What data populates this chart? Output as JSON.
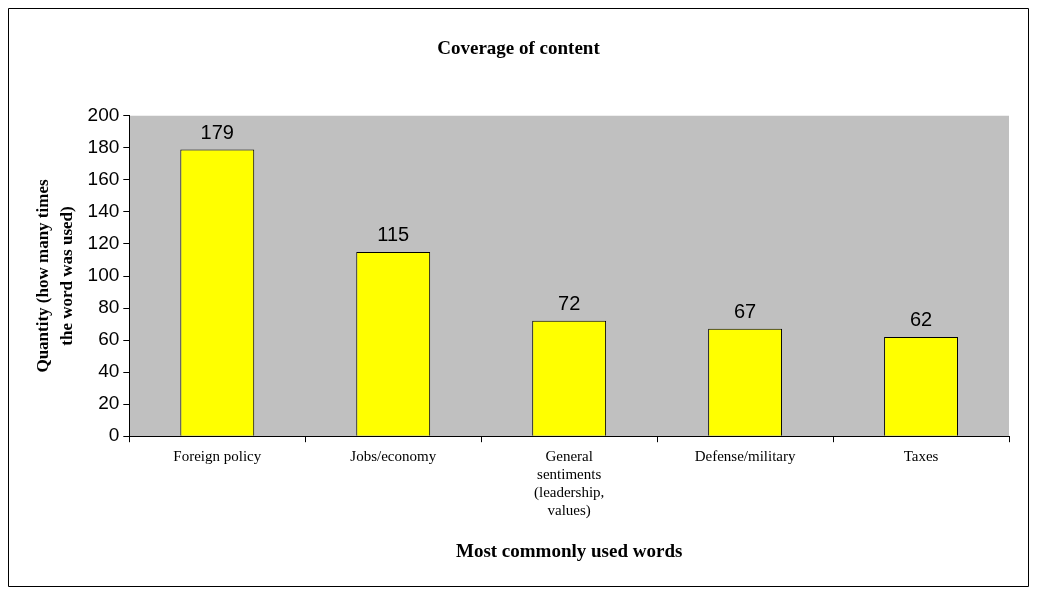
{
  "chart_data": {
    "type": "bar",
    "title": "Coverage of content",
    "xlabel": "Most commonly used words",
    "ylabel": "Quantity (how many times the word was used)",
    "categories": [
      "Foreign policy",
      "Jobs/economy",
      "General sentiments (leadership, values)",
      "Defense/military",
      "Taxes"
    ],
    "values": [
      179,
      115,
      72,
      67,
      62
    ],
    "color": "#ffff00",
    "ylim": [
      0,
      200
    ],
    "yticks": [
      0,
      20,
      40,
      60,
      80,
      100,
      120,
      140,
      160,
      180,
      200
    ],
    "grid": false,
    "legend": false,
    "data_labels": true
  }
}
